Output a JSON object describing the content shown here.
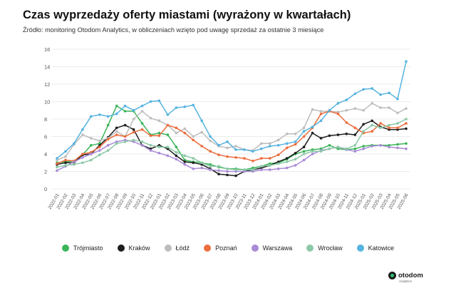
{
  "header": {
    "title": "Czas wyprzedaży oferty miastami (wyrażony w kwartałach)",
    "subtitle": "Źródło: monitoring Otodom Analytics, w obliczeniach wzięto pod uwagę sprzedaż za ostatnie 3 miesiące"
  },
  "brand": {
    "name": "otodom",
    "sub": "Analytics"
  },
  "chart_data": {
    "type": "line",
    "title": "Czas wyprzedaży oferty miastami (wyrażony w kwartałach)",
    "xlabel": "",
    "ylabel": "",
    "ylim": [
      0,
      16
    ],
    "yticks": [
      0,
      2,
      4,
      6,
      8,
      10,
      12,
      14,
      16
    ],
    "grid": true,
    "legend_position": "bottom",
    "x": [
      "2022-01",
      "2022-02",
      "2022-03",
      "2022-04",
      "2022-05",
      "2022-06",
      "2022-07",
      "2022-08",
      "2022-09",
      "2022-10",
      "2022-11",
      "2022-12",
      "2023-01",
      "2023-02",
      "2023-03",
      "2023-04",
      "2023-05",
      "2023-06",
      "2023-07",
      "2023-08",
      "2023-09",
      "2023-10",
      "2023-11",
      "2023-12",
      "2024-01",
      "2024-02",
      "2024-03",
      "2024-04",
      "2024-05",
      "2024-06",
      "2024-07",
      "2024-08",
      "2024-09",
      "2024-10",
      "2024-11",
      "2024-12",
      "2025-01",
      "2025-02",
      "2025-03",
      "2025-04",
      "2025-05",
      "2025-06"
    ],
    "series": [
      {
        "name": "Trójmiasto",
        "color": "#3cb55a",
        "values": [
          3.0,
          3.1,
          3.2,
          3.9,
          5.0,
          5.2,
          7.3,
          9.5,
          8.9,
          8.9,
          7.5,
          6.2,
          6.4,
          6.2,
          4.8,
          3.3,
          3.1,
          3.0,
          2.8,
          2.5,
          2.3,
          2.3,
          2.2,
          2.4,
          2.6,
          2.9,
          3.0,
          3.4,
          4.0,
          4.3,
          4.5,
          4.6,
          5.0,
          4.6,
          4.5,
          4.6,
          4.9,
          5.0,
          5.0,
          5.0,
          5.1,
          5.2
        ]
      },
      {
        "name": "Kraków",
        "color": "#1e1e1e",
        "values": [
          2.8,
          3.0,
          3.0,
          3.9,
          4.0,
          5.0,
          5.9,
          7.0,
          7.3,
          6.8,
          5.0,
          4.6,
          5.0,
          4.6,
          3.8,
          3.1,
          3.0,
          2.8,
          2.3,
          1.7,
          1.6,
          1.5,
          2.0,
          2.2,
          2.4,
          2.7,
          3.1,
          3.5,
          4.1,
          4.8,
          6.4,
          5.8,
          6.1,
          6.2,
          6.3,
          6.2,
          7.4,
          7.8,
          7.1,
          6.8,
          6.8,
          6.9
        ]
      },
      {
        "name": "Łódź",
        "color": "#bdbdbd",
        "values": [
          3.3,
          3.7,
          5.1,
          6.2,
          5.8,
          5.5,
          5.8,
          6.6,
          6.0,
          8.0,
          8.9,
          8.1,
          7.8,
          7.3,
          6.4,
          6.9,
          6.0,
          6.5,
          5.5,
          4.9,
          4.7,
          4.9,
          4.5,
          4.4,
          5.2,
          5.2,
          5.6,
          6.3,
          6.3,
          7.0,
          9.1,
          8.9,
          8.9,
          8.8,
          9.0,
          9.2,
          9.0,
          9.8,
          9.3,
          9.3,
          8.7,
          9.2
        ]
      },
      {
        "name": "Poznań",
        "color": "#ec6d3d",
        "values": [
          2.9,
          3.3,
          3.2,
          4.0,
          4.2,
          4.8,
          5.7,
          6.2,
          6.0,
          6.5,
          6.8,
          6.1,
          6.1,
          7.3,
          7.0,
          6.4,
          5.6,
          4.9,
          4.3,
          3.9,
          3.7,
          3.6,
          3.5,
          3.2,
          3.5,
          3.5,
          3.9,
          4.7,
          5.1,
          6.0,
          7.0,
          8.6,
          8.9,
          8.6,
          7.6,
          7.0,
          6.4,
          6.6,
          7.5,
          7.0,
          7.0,
          7.5
        ]
      },
      {
        "name": "Warszawa",
        "color": "#a98ad6",
        "values": [
          2.1,
          2.6,
          3.1,
          3.6,
          4.0,
          4.4,
          5.0,
          5.4,
          5.6,
          5.4,
          5.0,
          4.4,
          4.1,
          3.8,
          3.4,
          2.8,
          2.3,
          2.4,
          2.2,
          2.1,
          2.0,
          2.0,
          2.0,
          2.0,
          2.2,
          2.2,
          2.3,
          2.4,
          2.7,
          3.3,
          4.0,
          4.4,
          4.6,
          4.8,
          4.5,
          4.3,
          4.6,
          4.9,
          5.0,
          4.8,
          4.7,
          4.6
        ]
      },
      {
        "name": "Wrocław",
        "color": "#8cc8a7",
        "values": [
          2.5,
          2.7,
          2.8,
          3.0,
          3.3,
          3.9,
          4.4,
          5.2,
          5.4,
          5.6,
          5.4,
          5.0,
          4.8,
          4.8,
          4.2,
          3.8,
          3.5,
          3.0,
          2.6,
          2.6,
          2.3,
          2.2,
          2.2,
          2.2,
          2.6,
          2.7,
          2.9,
          3.1,
          3.4,
          4.0,
          4.3,
          4.3,
          4.6,
          4.8,
          4.6,
          5.0,
          6.6,
          7.3,
          7.0,
          7.3,
          7.5,
          8.0
        ]
      },
      {
        "name": "Katowice",
        "color": "#56b3e0",
        "values": [
          3.5,
          4.3,
          5.2,
          6.8,
          8.3,
          8.5,
          8.3,
          8.6,
          9.5,
          9.0,
          9.5,
          10.0,
          10.1,
          8.5,
          9.3,
          9.4,
          9.6,
          7.8,
          6.0,
          5.0,
          5.4,
          4.5,
          4.5,
          4.3,
          4.6,
          4.9,
          5.0,
          5.2,
          5.4,
          6.6,
          7.1,
          7.8,
          9.0,
          9.8,
          10.2,
          10.9,
          11.4,
          11.5,
          10.8,
          11.0,
          10.3,
          14.6
        ]
      }
    ]
  }
}
